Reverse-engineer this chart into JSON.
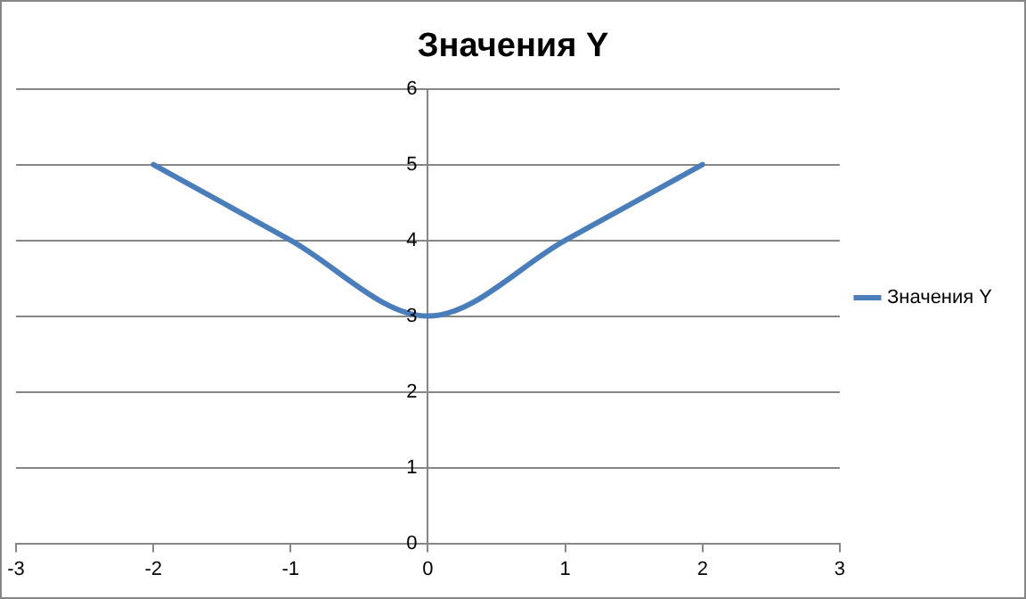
{
  "chart_data": {
    "type": "line",
    "title": "Значения Y",
    "x": [
      -2,
      -1,
      0,
      1,
      2
    ],
    "series": [
      {
        "name": "Значения Y",
        "color": "#4a7ebb",
        "values": [
          5,
          4,
          3,
          4,
          5
        ]
      }
    ],
    "xlim": [
      -3,
      3
    ],
    "xticks": [
      -3,
      -2,
      -1,
      0,
      1,
      2,
      3
    ],
    "ylim": [
      0,
      6
    ],
    "yticks": [
      0,
      1,
      2,
      3,
      4,
      5,
      6
    ],
    "grid": "y",
    "legend": "right",
    "marker": "none",
    "line_style": "solid"
  }
}
